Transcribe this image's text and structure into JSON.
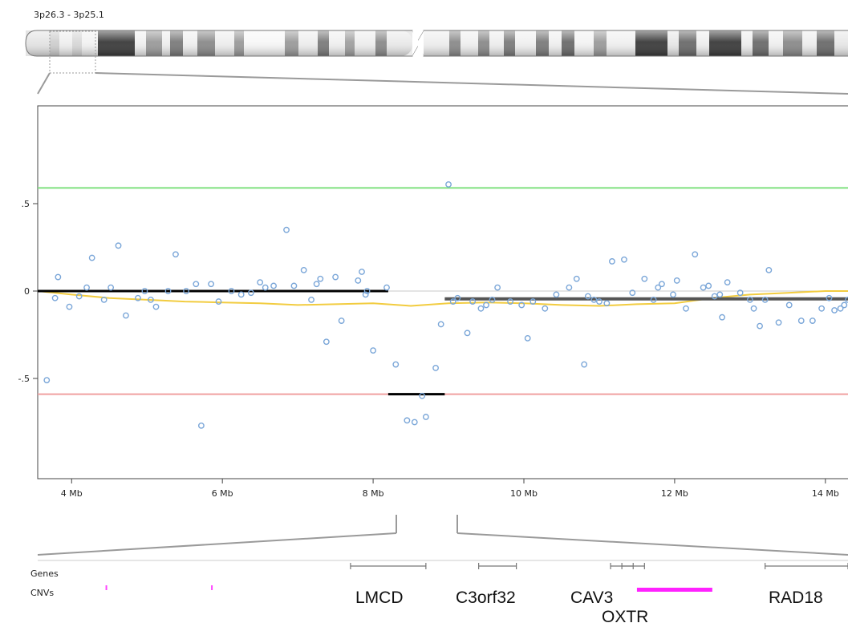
{
  "band_label": "3p26.3 - 3p25.1",
  "track_labels": {
    "genes": "Genes",
    "cnvs": "CNVs"
  },
  "genes": [
    {
      "name": "LMCD",
      "start": 7.7,
      "end": 8.7
    },
    {
      "name": "C3orf32",
      "start": 9.4,
      "end": 9.9
    },
    {
      "name": "CAV3",
      "start": 11.15,
      "end": 11.6
    },
    {
      "name": "OXTR",
      "start": 11.3,
      "end": 11.45
    },
    {
      "name": "RAD18",
      "start": 13.2,
      "end": 14.3
    }
  ],
  "cnvs": [
    {
      "start": 4.45,
      "end": 4.47,
      "color": "#ff44ff"
    },
    {
      "start": 5.85,
      "end": 5.87,
      "color": "#ff44ff"
    },
    {
      "start": 11.5,
      "end": 12.5,
      "color": "#ff22ff"
    }
  ],
  "colors": {
    "points": "#7aa6d8",
    "gain_threshold": "#7fe07f",
    "loss_threshold": "#f0a0a0",
    "smooth": "#f2cc40",
    "segment_dark": "#555555",
    "segment_black": "#000000",
    "cnv": "#ff33ff"
  },
  "chart_data": {
    "type": "scatter",
    "xlabel": "",
    "ylabel": "",
    "xlim": [
      3.55,
      14.3
    ],
    "ylim": [
      -1.0,
      1.0
    ],
    "x_ticks": [
      {
        "value": 4,
        "label": "4 Mb"
      },
      {
        "value": 6,
        "label": "6 Mb"
      },
      {
        "value": 8,
        "label": "8 Mb"
      },
      {
        "value": 10,
        "label": "10 Mb"
      },
      {
        "value": 12,
        "label": "12 Mb"
      },
      {
        "value": 14,
        "label": "14 Mb"
      }
    ],
    "y_ticks": [
      {
        "value": 0.5,
        "label": ".5"
      },
      {
        "value": 0,
        "label": "0"
      },
      {
        "value": -0.5,
        "label": "-.5"
      }
    ],
    "reference_lines": [
      {
        "name": "gain threshold",
        "y": 0.59
      },
      {
        "name": "loss threshold",
        "y": -0.59
      },
      {
        "name": "baseline",
        "y": 0
      }
    ],
    "segments": [
      {
        "x0": 3.55,
        "x1": 8.2,
        "y": 0.0,
        "style": "black"
      },
      {
        "x0": 8.2,
        "x1": 8.95,
        "y": -0.59,
        "style": "black"
      },
      {
        "x0": 8.95,
        "x1": 14.3,
        "y": -0.045,
        "style": "dark"
      }
    ],
    "smooth_line": {
      "x": [
        3.55,
        4.0,
        4.5,
        5.0,
        5.5,
        6.0,
        6.5,
        7.0,
        7.5,
        8.0,
        8.5,
        9.0,
        9.5,
        10.0,
        10.5,
        11.0,
        11.5,
        12.0,
        12.5,
        13.0,
        13.5,
        14.0,
        14.3
      ],
      "y": [
        0.0,
        -0.02,
        -0.04,
        -0.05,
        -0.06,
        -0.065,
        -0.07,
        -0.08,
        -0.075,
        -0.07,
        -0.085,
        -0.07,
        -0.065,
        -0.07,
        -0.08,
        -0.085,
        -0.075,
        -0.07,
        -0.04,
        -0.02,
        -0.01,
        0.0,
        0.0
      ]
    },
    "points": {
      "x": [
        3.67,
        3.78,
        3.82,
        3.97,
        4.1,
        4.2,
        4.27,
        4.43,
        4.52,
        4.62,
        4.72,
        4.88,
        4.97,
        5.05,
        5.12,
        5.28,
        5.38,
        5.52,
        5.65,
        5.72,
        5.85,
        5.95,
        6.12,
        6.25,
        6.38,
        6.5,
        6.57,
        6.68,
        6.85,
        6.95,
        7.08,
        7.18,
        7.25,
        7.3,
        7.38,
        7.5,
        7.58,
        7.8,
        7.85,
        7.9,
        7.92,
        8.0,
        8.18,
        8.3,
        8.45,
        8.55,
        8.65,
        8.7,
        8.83,
        8.9,
        9.0,
        9.06,
        9.12,
        9.25,
        9.32,
        9.43,
        9.5,
        9.58,
        9.65,
        9.82,
        9.97,
        10.05,
        10.12,
        10.28,
        10.43,
        10.6,
        10.7,
        10.8,
        10.85,
        10.93,
        11.0,
        11.1,
        11.17,
        11.33,
        11.44,
        11.6,
        11.72,
        11.78,
        11.83,
        11.98,
        12.03,
        12.15,
        12.27,
        12.38,
        12.45,
        12.53,
        12.6,
        12.63,
        12.7,
        12.87,
        13.0,
        13.05,
        13.13,
        13.2,
        13.25,
        13.38,
        13.52,
        13.68,
        13.83,
        13.95,
        14.05,
        14.12,
        14.2,
        14.25,
        14.3
      ],
      "y": [
        -0.51,
        -0.04,
        0.08,
        -0.09,
        -0.03,
        0.02,
        0.19,
        -0.05,
        0.02,
        0.26,
        -0.14,
        -0.04,
        0.0,
        -0.05,
        -0.09,
        0.0,
        0.21,
        0.0,
        0.04,
        -0.77,
        0.04,
        -0.06,
        0.0,
        -0.02,
        -0.01,
        0.05,
        0.02,
        0.03,
        0.35,
        0.03,
        0.12,
        -0.05,
        0.04,
        0.07,
        -0.29,
        0.08,
        -0.17,
        0.06,
        0.11,
        -0.02,
        0.0,
        -0.34,
        0.02,
        -0.42,
        -0.74,
        -0.75,
        -0.6,
        -0.72,
        -0.44,
        -0.19,
        0.61,
        -0.06,
        -0.04,
        -0.24,
        -0.06,
        -0.1,
        -0.08,
        -0.05,
        0.02,
        -0.06,
        -0.08,
        -0.27,
        -0.06,
        -0.1,
        -0.02,
        0.02,
        0.07,
        -0.42,
        -0.03,
        -0.05,
        -0.06,
        -0.07,
        0.17,
        0.18,
        -0.01,
        0.07,
        -0.05,
        0.02,
        0.04,
        -0.02,
        0.06,
        -0.1,
        0.21,
        0.02,
        0.03,
        -0.03,
        -0.02,
        -0.15,
        0.05,
        -0.01,
        -0.05,
        -0.1,
        -0.2,
        -0.05,
        0.12,
        -0.18,
        -0.08,
        -0.17,
        -0.17,
        -0.1,
        -0.04,
        -0.11,
        -0.1,
        -0.08,
        -0.05
      ]
    }
  }
}
